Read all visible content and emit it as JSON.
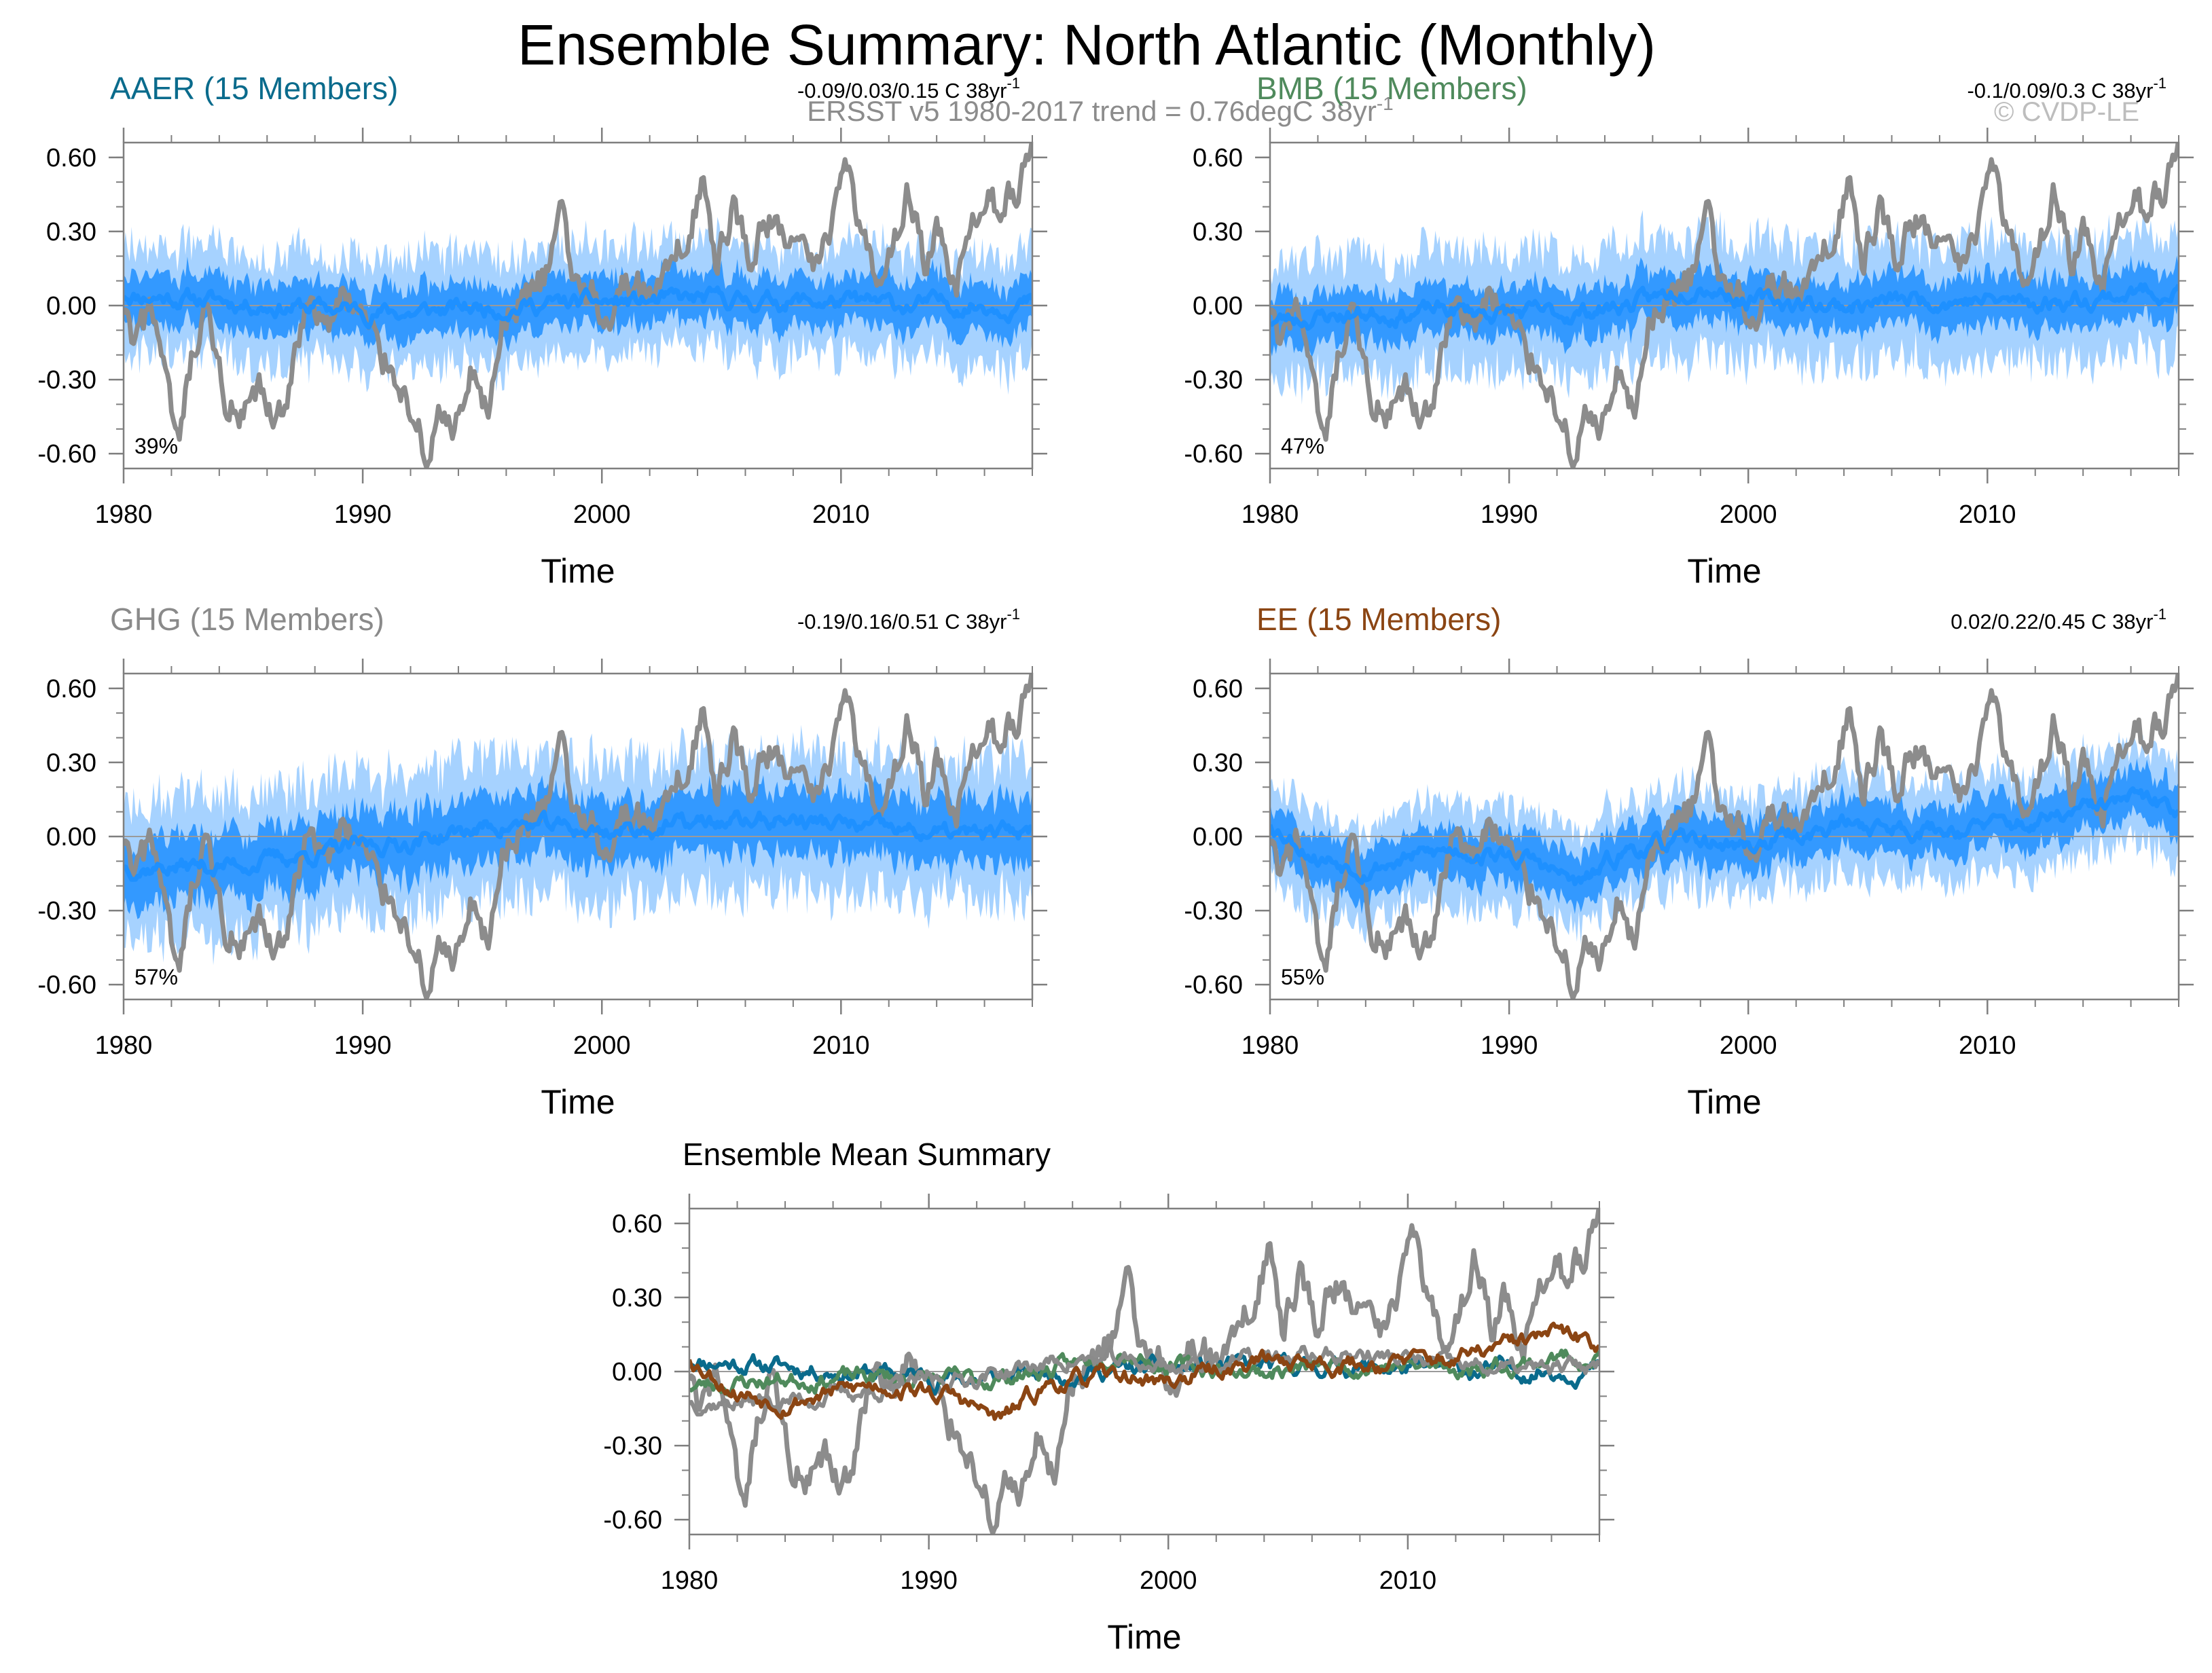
{
  "title": "Ensemble Summary: North Atlantic (Monthly)",
  "observation_note": "ERSST v5 1980-2017 trend = 0.76degC 38yr",
  "observation_note_sup": "-1",
  "copyright": "© CVDP-LE",
  "colors": {
    "obs": "#8c8c8c",
    "ens_mean": "#1e90ff",
    "band_inner": "#3399ff",
    "band_outer": "#a6d2ff",
    "zero_line": "#9a9a9a",
    "axis": "#7f7f7f",
    "aaer": "#0a6b8c",
    "bmb": "#4f8a5c",
    "ghg": "#8a8a8a",
    "ee": "#8b4513"
  },
  "chart_data": [
    {
      "id": "aaer",
      "type": "line",
      "subtitle": "AAER (15 Members)",
      "subtitle_color": "#0a6b8c",
      "trend_label": "-0.09/0.03/0.15 C 38yr",
      "trend_sup": "-1",
      "percent_label": "39%",
      "xlabel": "Time",
      "ylabel": "",
      "xlim": [
        1980,
        2018
      ],
      "ylim": [
        -0.66,
        0.66
      ],
      "xticks": [
        "1980",
        "1990",
        "2000",
        "2010"
      ],
      "yticks": [
        "0.60",
        "0.30",
        "0.00",
        "-0.30",
        "-0.60"
      ],
      "series": [
        {
          "name": "ensemble mean",
          "seed": 11,
          "shift": 0.0,
          "slope": 0.0,
          "keypoints": [
            [
              1980,
              0.05
            ],
            [
              1984,
              0.02
            ],
            [
              1988,
              -0.01
            ],
            [
              1992,
              -0.03
            ],
            [
              1996,
              0.0
            ],
            [
              2000,
              0.01
            ],
            [
              2004,
              0.02
            ],
            [
              2008,
              0.02
            ],
            [
              2012,
              0.0
            ],
            [
              2018,
              0.01
            ]
          ]
        },
        {
          "name": "spread 10-90%",
          "halfwidth": 0.1
        },
        {
          "name": "spread min-max",
          "halfwidth": 0.22
        }
      ]
    },
    {
      "id": "bmb",
      "type": "line",
      "subtitle": "BMB (15 Members)",
      "subtitle_color": "#4f8a5c",
      "trend_label": "-0.1/0.09/0.3 C 38yr",
      "trend_sup": "-1",
      "percent_label": "47%",
      "xlabel": "Time",
      "ylabel": "",
      "xlim": [
        1980,
        2018
      ],
      "ylim": [
        -0.66,
        0.66
      ],
      "xticks": [
        "1980",
        "1990",
        "2000",
        "2010"
      ],
      "yticks": [
        "0.60",
        "0.30",
        "0.00",
        "-0.30",
        "-0.60"
      ],
      "series": [
        {
          "name": "ensemble mean",
          "seed": 23,
          "shift": 0.0,
          "slope": 0.0,
          "keypoints": [
            [
              1980,
              -0.06
            ],
            [
              1984,
              -0.03
            ],
            [
              1988,
              -0.02
            ],
            [
              1992,
              -0.04
            ],
            [
              1996,
              0.02
            ],
            [
              1998,
              0.1
            ],
            [
              2000,
              0.02
            ],
            [
              2004,
              0.0
            ],
            [
              2008,
              0.03
            ],
            [
              2012,
              0.01
            ],
            [
              2016,
              0.05
            ],
            [
              2018,
              0.07
            ]
          ]
        },
        {
          "name": "spread 10-90%",
          "halfwidth": 0.1
        },
        {
          "name": "spread min-max",
          "halfwidth": 0.24
        }
      ]
    },
    {
      "id": "ghg",
      "type": "line",
      "subtitle": "GHG (15 Members)",
      "subtitle_color": "#8a8a8a",
      "trend_label": "-0.19/0.16/0.51 C 38yr",
      "trend_sup": "-1",
      "percent_label": "57%",
      "xlabel": "Time",
      "ylabel": "",
      "xlim": [
        1980,
        2018
      ],
      "ylim": [
        -0.66,
        0.66
      ],
      "xticks": [
        "1980",
        "1990",
        "2000",
        "2010"
      ],
      "yticks": [
        "0.60",
        "0.30",
        "0.00",
        "-0.30",
        "-0.60"
      ],
      "series": [
        {
          "name": "ensemble mean",
          "seed": 37,
          "shift": 0.0,
          "slope": 0.0,
          "keypoints": [
            [
              1980,
              -0.12
            ],
            [
              1984,
              -0.12
            ],
            [
              1988,
              -0.07
            ],
            [
              1992,
              -0.02
            ],
            [
              1996,
              0.05
            ],
            [
              2000,
              0.02
            ],
            [
              2004,
              0.05
            ],
            [
              2008,
              0.07
            ],
            [
              2012,
              0.02
            ],
            [
              2016,
              0.0
            ],
            [
              2018,
              0.03
            ]
          ]
        },
        {
          "name": "spread 10-90%",
          "halfwidth": 0.13
        },
        {
          "name": "spread min-max",
          "halfwidth": 0.28
        }
      ]
    },
    {
      "id": "ee",
      "type": "line",
      "subtitle": "EE (15 Members)",
      "subtitle_color": "#8b4513",
      "trend_label": "0.02/0.22/0.45 C 38yr",
      "trend_sup": "-1",
      "percent_label": "55%",
      "xlabel": "Time",
      "ylabel": "",
      "xlim": [
        1980,
        2018
      ],
      "ylim": [
        -0.66,
        0.66
      ],
      "xticks": [
        "1980",
        "1990",
        "2000",
        "2010"
      ],
      "yticks": [
        "0.60",
        "0.30",
        "0.00",
        "-0.30",
        "-0.60"
      ],
      "series": [
        {
          "name": "ensemble mean",
          "seed": 53,
          "shift": 0.0,
          "slope": 0.0,
          "keypoints": [
            [
              1980,
              0.06
            ],
            [
              1982,
              -0.08
            ],
            [
              1984,
              -0.12
            ],
            [
              1988,
              -0.05
            ],
            [
              1991,
              -0.1
            ],
            [
              1993,
              -0.2
            ],
            [
              1995,
              -0.05
            ],
            [
              1998,
              -0.02
            ],
            [
              2000,
              -0.04
            ],
            [
              2004,
              0.05
            ],
            [
              2008,
              0.03
            ],
            [
              2012,
              0.05
            ],
            [
              2016,
              0.15
            ],
            [
              2018,
              0.11
            ]
          ]
        },
        {
          "name": "spread 10-90%",
          "halfwidth": 0.1
        },
        {
          "name": "spread min-max",
          "halfwidth": 0.2
        }
      ]
    },
    {
      "id": "mean",
      "type": "line",
      "subtitle": "Ensemble Mean Summary",
      "subtitle_color": "#000000",
      "trend_label": "",
      "trend_sup": "",
      "percent_label": "",
      "xlabel": "Time",
      "ylabel": "",
      "xlim": [
        1980,
        2018
      ],
      "ylim": [
        -0.66,
        0.66
      ],
      "xticks": [
        "1980",
        "1990",
        "2000",
        "2010"
      ],
      "yticks": [
        "0.60",
        "0.30",
        "0.00",
        "-0.30",
        "-0.60"
      ],
      "series": [
        {
          "name": "AAER",
          "color": "#0a6b8c",
          "ref": "aaer"
        },
        {
          "name": "BMB",
          "color": "#4f8a5c",
          "ref": "bmb"
        },
        {
          "name": "GHG",
          "color": "#8a8a8a",
          "ref": "ghg"
        },
        {
          "name": "EE",
          "color": "#8b4513",
          "ref": "ee"
        }
      ]
    }
  ],
  "observations": {
    "name": "ERSST v5",
    "keypoints": [
      [
        1980,
        -0.05
      ],
      [
        1980.5,
        -0.18
      ],
      [
        1981.2,
        0.02
      ],
      [
        1981.8,
        -0.35
      ],
      [
        1982.3,
        -0.6
      ],
      [
        1982.8,
        -0.25
      ],
      [
        1983.5,
        -0.05
      ],
      [
        1984.3,
        -0.4
      ],
      [
        1985.0,
        -0.48
      ],
      [
        1985.7,
        -0.35
      ],
      [
        1986.3,
        -0.5
      ],
      [
        1987.0,
        -0.3
      ],
      [
        1987.8,
        0.05
      ],
      [
        1988.5,
        -0.1
      ],
      [
        1989.2,
        0.05
      ],
      [
        1990.0,
        -0.05
      ],
      [
        1990.8,
        -0.2
      ],
      [
        1991.5,
        -0.3
      ],
      [
        1992.2,
        -0.45
      ],
      [
        1992.7,
        -0.65
      ],
      [
        1993.2,
        -0.4
      ],
      [
        1993.8,
        -0.55
      ],
      [
        1994.5,
        -0.3
      ],
      [
        1995.2,
        -0.45
      ],
      [
        1995.8,
        -0.1
      ],
      [
        1996.5,
        0.0
      ],
      [
        1997.2,
        0.05
      ],
      [
        1997.8,
        0.15
      ],
      [
        1998.3,
        0.42
      ],
      [
        1998.8,
        0.1
      ],
      [
        1999.5,
        0.05
      ],
      [
        2000.2,
        -0.05
      ],
      [
        2001.0,
        0.1
      ],
      [
        2002.0,
        0.05
      ],
      [
        2003.0,
        0.15
      ],
      [
        2003.7,
        0.35
      ],
      [
        2004.2,
        0.5
      ],
      [
        2004.8,
        0.15
      ],
      [
        2005.5,
        0.4
      ],
      [
        2006.2,
        0.2
      ],
      [
        2007.0,
        0.35
      ],
      [
        2008.0,
        0.25
      ],
      [
        2008.8,
        0.15
      ],
      [
        2009.5,
        0.3
      ],
      [
        2010.2,
        0.65
      ],
      [
        2010.8,
        0.3
      ],
      [
        2011.5,
        0.1
      ],
      [
        2012.2,
        0.25
      ],
      [
        2012.8,
        0.5
      ],
      [
        2013.5,
        0.15
      ],
      [
        2014.0,
        0.3
      ],
      [
        2014.8,
        0.05
      ],
      [
        2015.5,
        0.3
      ],
      [
        2016.2,
        0.4
      ],
      [
        2016.8,
        0.42
      ],
      [
        2017.5,
        0.5
      ],
      [
        2018.0,
        0.62
      ]
    ]
  }
}
